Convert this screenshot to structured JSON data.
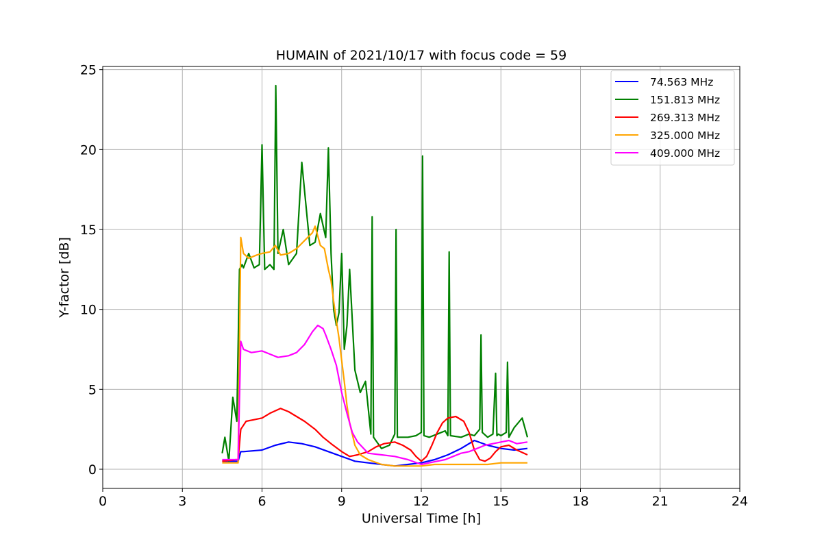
{
  "chart_data": {
    "type": "line",
    "title": "HUMAIN of 2021/10/17 with focus code = 59",
    "xlabel": "Universal Time [h]",
    "ylabel": "Y-factor [dB]",
    "xlim": [
      0,
      24
    ],
    "ylim": [
      -1.2,
      25.2
    ],
    "xticks": [
      0,
      3,
      6,
      9,
      12,
      15,
      18,
      21,
      24
    ],
    "xtick_labels": [
      "0",
      "3",
      "6",
      "9",
      "12",
      "15",
      "18",
      "21",
      "24"
    ],
    "yticks": [
      0,
      5,
      10,
      15,
      20,
      25
    ],
    "ytick_labels": [
      "0",
      "5",
      "10",
      "15",
      "20",
      "25"
    ],
    "grid": true,
    "legend_position": "top-right",
    "series": [
      {
        "name": " 74.563 MHz",
        "color": "#0000ff",
        "x": [
          4.5,
          5.0,
          5.1,
          5.2,
          5.3,
          6.0,
          6.5,
          7.0,
          7.5,
          8.0,
          8.5,
          9.0,
          9.5,
          10.0,
          10.5,
          11.0,
          11.5,
          12.0,
          12.5,
          13.0,
          13.5,
          14.0,
          14.5,
          15.0,
          15.5,
          16.0
        ],
        "y": [
          0.5,
          0.5,
          0.5,
          1.1,
          1.1,
          1.2,
          1.5,
          1.7,
          1.6,
          1.4,
          1.1,
          0.8,
          0.5,
          0.4,
          0.3,
          0.2,
          0.3,
          0.4,
          0.6,
          0.9,
          1.3,
          1.8,
          1.5,
          1.3,
          1.2,
          1.3
        ]
      },
      {
        "name": "151.813 MHz",
        "color": "#008000",
        "x": [
          4.5,
          4.6,
          4.75,
          4.9,
          5.05,
          5.15,
          5.25,
          5.3,
          5.5,
          5.7,
          5.9,
          6.0,
          6.1,
          6.3,
          6.45,
          6.52,
          6.6,
          6.8,
          7.0,
          7.3,
          7.5,
          7.8,
          8.0,
          8.2,
          8.4,
          8.5,
          8.6,
          8.7,
          8.8,
          8.9,
          9.0,
          9.1,
          9.2,
          9.3,
          9.5,
          9.7,
          9.9,
          10.1,
          10.15,
          10.2,
          10.5,
          10.8,
          11.0,
          11.05,
          11.1,
          11.5,
          11.8,
          12.0,
          12.05,
          12.1,
          12.3,
          12.6,
          12.9,
          13.0,
          13.05,
          13.1,
          13.5,
          13.8,
          14.0,
          14.2,
          14.25,
          14.3,
          14.5,
          14.7,
          14.8,
          14.85,
          14.9,
          15.0,
          15.2,
          15.25,
          15.3,
          15.5,
          15.8,
          16.0
        ],
        "y": [
          1.0,
          2.0,
          0.5,
          4.5,
          3.0,
          12.5,
          12.8,
          12.6,
          13.5,
          12.6,
          12.8,
          20.3,
          12.5,
          12.8,
          12.5,
          24.0,
          13.5,
          15.0,
          12.8,
          13.5,
          19.2,
          14.0,
          14.2,
          16.0,
          14.5,
          20.1,
          13.5,
          10.0,
          9.0,
          9.8,
          13.5,
          7.5,
          9.0,
          12.5,
          6.2,
          4.8,
          5.5,
          2.2,
          15.8,
          2.0,
          1.3,
          1.5,
          2.2,
          15.0,
          2.0,
          2.0,
          2.1,
          2.3,
          19.6,
          2.1,
          2.0,
          2.2,
          2.4,
          2.1,
          13.6,
          2.1,
          2.0,
          2.2,
          2.1,
          2.5,
          8.4,
          2.3,
          2.0,
          2.2,
          6.0,
          2.1,
          2.2,
          2.1,
          2.3,
          6.7,
          2.0,
          2.6,
          3.2,
          2.0
        ]
      },
      {
        "name": "269.313 MHz",
        "color": "#ff0000",
        "x": [
          4.5,
          5.0,
          5.1,
          5.2,
          5.4,
          5.7,
          6.0,
          6.3,
          6.7,
          7.0,
          7.3,
          7.6,
          8.0,
          8.3,
          8.6,
          9.0,
          9.3,
          9.6,
          10.0,
          10.3,
          10.6,
          11.0,
          11.3,
          11.6,
          11.8,
          12.0,
          12.2,
          12.4,
          12.6,
          12.8,
          13.0,
          13.3,
          13.6,
          13.8,
          14.0,
          14.2,
          14.4,
          14.6,
          14.8,
          15.0,
          15.3,
          15.6,
          16.0
        ],
        "y": [
          0.5,
          0.6,
          0.6,
          2.5,
          3.0,
          3.1,
          3.2,
          3.5,
          3.8,
          3.6,
          3.3,
          3.0,
          2.5,
          2.0,
          1.6,
          1.1,
          0.8,
          0.9,
          1.1,
          1.4,
          1.6,
          1.7,
          1.5,
          1.2,
          0.8,
          0.5,
          0.8,
          1.5,
          2.3,
          2.9,
          3.2,
          3.3,
          3.0,
          2.3,
          1.2,
          0.6,
          0.5,
          0.7,
          1.1,
          1.4,
          1.5,
          1.2,
          0.9
        ]
      },
      {
        "name": "325.000 MHz",
        "color": "#ffa500",
        "x": [
          4.5,
          5.0,
          5.1,
          5.2,
          5.3,
          5.5,
          5.8,
          6.0,
          6.3,
          6.5,
          6.7,
          7.0,
          7.3,
          7.6,
          7.9,
          8.0,
          8.2,
          8.35,
          8.5,
          8.6,
          8.7,
          8.8,
          8.9,
          9.0,
          9.1,
          9.2,
          9.3,
          9.4,
          9.5,
          9.7,
          10.0,
          10.5,
          11.0,
          11.5,
          12.0,
          12.5,
          13.0,
          13.5,
          14.0,
          14.5,
          15.0,
          15.5,
          16.0
        ],
        "y": [
          0.4,
          0.4,
          0.4,
          14.5,
          13.5,
          13.2,
          13.4,
          13.5,
          13.6,
          14.0,
          13.4,
          13.5,
          13.8,
          14.3,
          14.8,
          15.2,
          14.0,
          13.8,
          12.5,
          11.8,
          10.5,
          9.3,
          8.2,
          6.8,
          5.5,
          4.0,
          2.9,
          2.2,
          1.5,
          0.9,
          0.6,
          0.3,
          0.2,
          0.2,
          0.2,
          0.3,
          0.3,
          0.3,
          0.3,
          0.3,
          0.4,
          0.4,
          0.4
        ]
      },
      {
        "name": "409.000 MHz",
        "color": "#ff00ff",
        "x": [
          4.5,
          5.0,
          5.1,
          5.2,
          5.3,
          5.6,
          6.0,
          6.3,
          6.6,
          7.0,
          7.3,
          7.6,
          7.9,
          8.1,
          8.3,
          8.4,
          8.6,
          8.8,
          9.0,
          9.2,
          9.4,
          9.6,
          10.0,
          10.5,
          11.0,
          11.5,
          12.0,
          12.3,
          12.6,
          12.9,
          13.2,
          13.5,
          13.8,
          14.1,
          14.4,
          14.7,
          15.0,
          15.3,
          15.6,
          16.0
        ],
        "y": [
          0.6,
          0.6,
          0.6,
          8.0,
          7.5,
          7.3,
          7.4,
          7.2,
          7.0,
          7.1,
          7.3,
          7.8,
          8.6,
          9.0,
          8.8,
          8.4,
          7.5,
          6.5,
          4.8,
          3.5,
          2.3,
          1.7,
          1.0,
          0.9,
          0.8,
          0.6,
          0.3,
          0.4,
          0.5,
          0.6,
          0.8,
          1.0,
          1.1,
          1.3,
          1.5,
          1.6,
          1.7,
          1.8,
          1.6,
          1.7
        ]
      }
    ]
  }
}
